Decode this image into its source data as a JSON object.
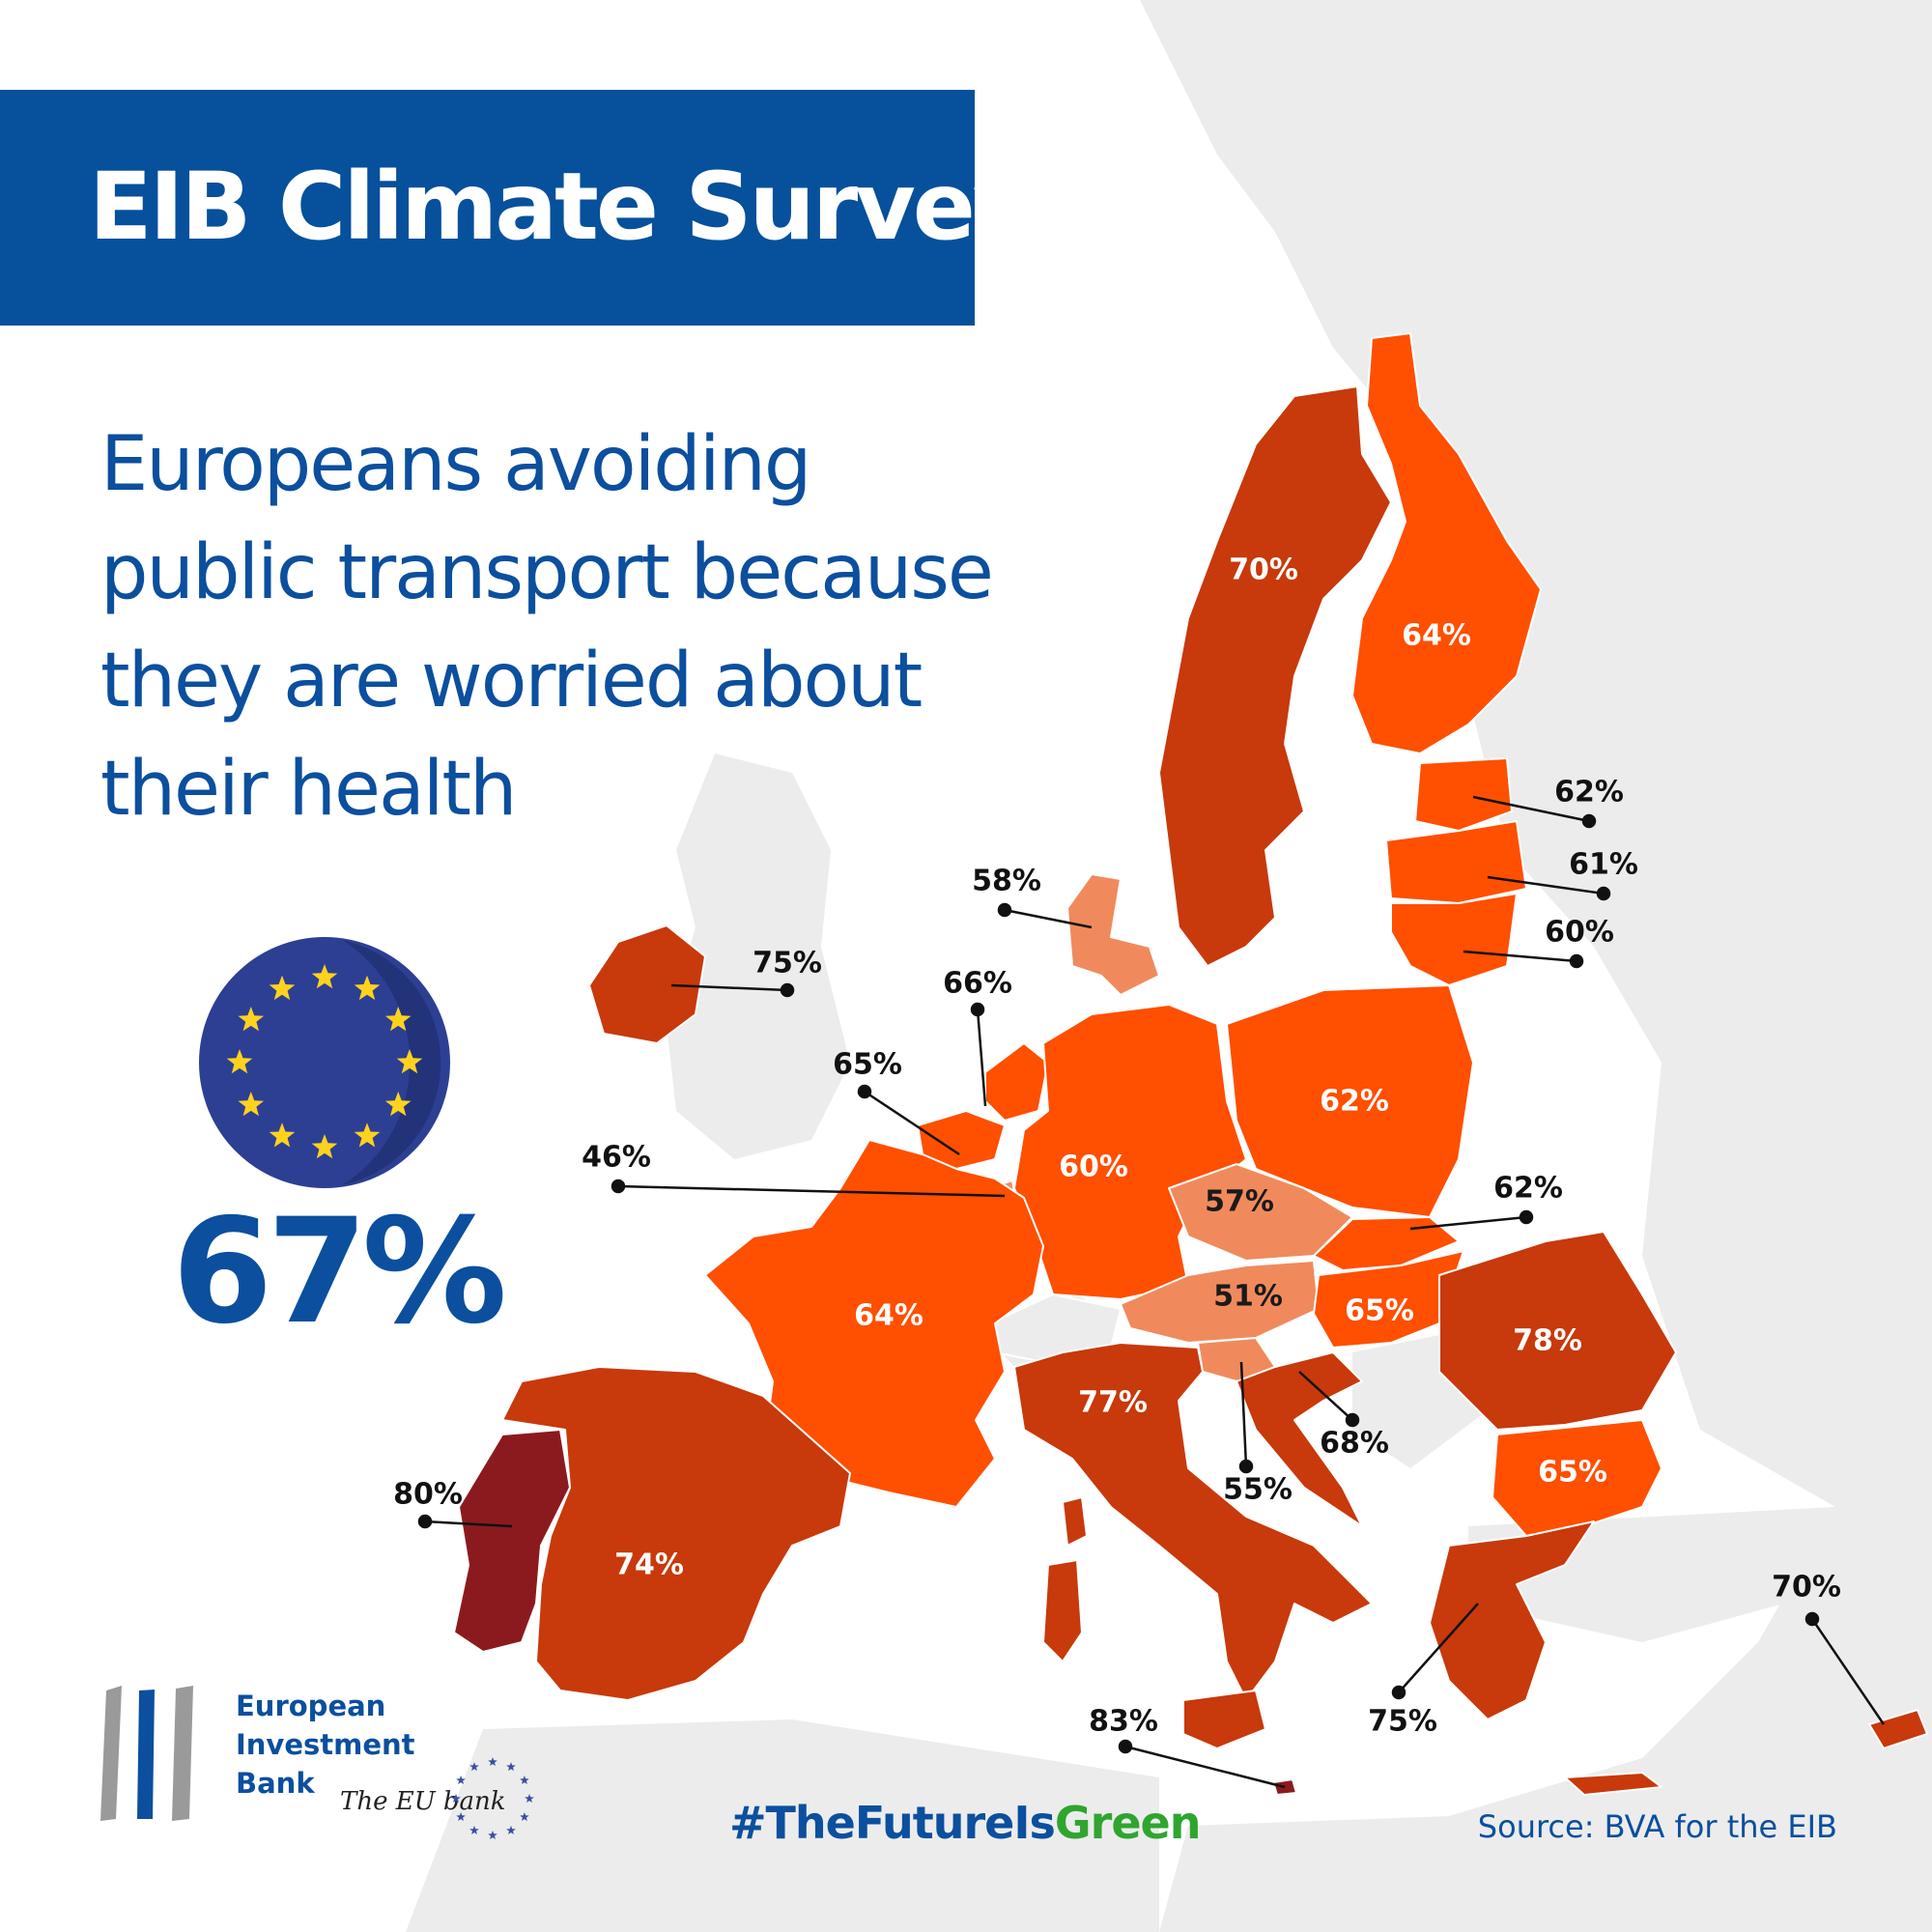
{
  "banner": {
    "title": "EIB Climate Survey"
  },
  "headline": {
    "lines": [
      "Europeans avoiding",
      "public transport because",
      "they are worried about",
      "their health"
    ]
  },
  "eu_average": {
    "value": "67%",
    "flag_icon": "eu-flag-icon"
  },
  "colors": {
    "banner_blue": "#06509c",
    "text_blue": "#0b4f9e",
    "hashtag_green": "#2fa52f",
    "land_background": "#ececec",
    "scale_lightest": "#f08a5d",
    "scale_mid": "#ff4f00",
    "scale_dark": "#c8390b",
    "scale_darkest": "#8b1a1e"
  },
  "countries": [
    {
      "id": "sweden",
      "label": "70%",
      "value": 70
    },
    {
      "id": "finland",
      "label": "64%",
      "value": 64
    },
    {
      "id": "estonia",
      "label": "62%",
      "value": 62
    },
    {
      "id": "latvia",
      "label": "61%",
      "value": 61
    },
    {
      "id": "lithuania",
      "label": "60%",
      "value": 60
    },
    {
      "id": "denmark",
      "label": "58%",
      "value": 58
    },
    {
      "id": "ireland",
      "label": "75%",
      "value": 75
    },
    {
      "id": "netherlands",
      "label": "66%",
      "value": 66
    },
    {
      "id": "belgium",
      "label": "65%",
      "value": 65
    },
    {
      "id": "luxembourg",
      "label": "46%",
      "value": 46
    },
    {
      "id": "germany",
      "label": "60%",
      "value": 60
    },
    {
      "id": "poland",
      "label": "62%",
      "value": 62
    },
    {
      "id": "czechia",
      "label": "57%",
      "value": 57
    },
    {
      "id": "slovakia",
      "label": "62%",
      "value": 62
    },
    {
      "id": "austria",
      "label": "51%",
      "value": 51
    },
    {
      "id": "hungary",
      "label": "65%",
      "value": 65
    },
    {
      "id": "romania",
      "label": "78%",
      "value": 78
    },
    {
      "id": "france",
      "label": "64%",
      "value": 64
    },
    {
      "id": "italy",
      "label": "77%",
      "value": 77
    },
    {
      "id": "slovenia",
      "label": "55%",
      "value": 55
    },
    {
      "id": "croatia",
      "label": "68%",
      "value": 68
    },
    {
      "id": "bulgaria",
      "label": "65%",
      "value": 65
    },
    {
      "id": "portugal",
      "label": "80%",
      "value": 80
    },
    {
      "id": "spain",
      "label": "74%",
      "value": 74
    },
    {
      "id": "malta",
      "label": "83%",
      "value": 83
    },
    {
      "id": "greece",
      "label": "75%",
      "value": 75
    },
    {
      "id": "cyprus",
      "label": "70%",
      "value": 70
    }
  ],
  "logo": {
    "lines": [
      "European",
      "Investment",
      "Bank"
    ],
    "tagline": "The EU bank"
  },
  "hashtag": {
    "part1": "#TheFutureIs",
    "part2": "Green"
  },
  "source": "Source: BVA for the EIB"
}
